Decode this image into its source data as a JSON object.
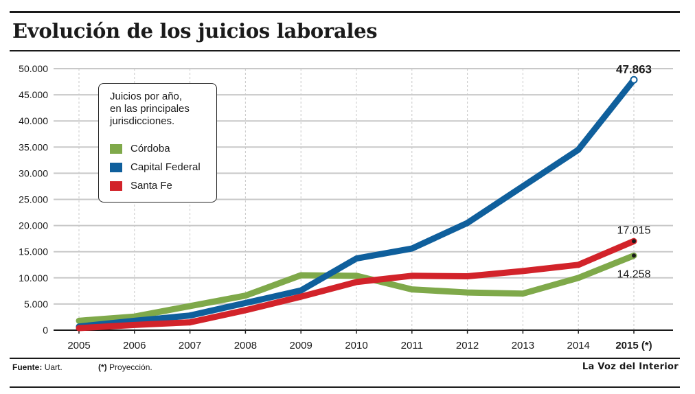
{
  "title": "Evolución de los juicios laborales",
  "legend": {
    "title_lines": [
      "Juicios por año,",
      "en las principales",
      "jurisdicciones."
    ]
  },
  "footer": {
    "source_label": "Fuente:",
    "source_value": "Uart.",
    "note_mark": "(*)",
    "note_text": "Proyección."
  },
  "brand": "La Voz del Interior",
  "colors": {
    "cordoba": "#7fa94a",
    "capital_federal": "#0f5f9c",
    "santa_fe": "#d2232a",
    "grid": "#c8c8c8",
    "axis": "#1a1a1a"
  },
  "chart_data": {
    "type": "line",
    "x": [
      "2005",
      "2006",
      "2007",
      "2008",
      "2009",
      "2010",
      "2011",
      "2012",
      "2013",
      "2014",
      "2015 (*)"
    ],
    "x_bold_last": true,
    "ylim": [
      0,
      50000
    ],
    "yticks": [
      0,
      5000,
      10000,
      15000,
      20000,
      25000,
      30000,
      35000,
      40000,
      45000,
      50000
    ],
    "ytick_labels": [
      "0",
      "5.000",
      "10.000",
      "15.000",
      "20.000",
      "25.000",
      "30.000",
      "35.000",
      "40.000",
      "45.000",
      "50.000"
    ],
    "grid": true,
    "legend_position": "top-left",
    "series": [
      {
        "name": "Córdoba",
        "color_key": "cordoba",
        "values": [
          1800,
          2600,
          4600,
          6600,
          10500,
          10400,
          7800,
          7200,
          7000,
          10000,
          14258
        ]
      },
      {
        "name": "Capital Federal",
        "color_key": "capital_federal",
        "values": [
          700,
          1800,
          2800,
          5200,
          7600,
          13700,
          15600,
          20500,
          27500,
          34500,
          47863
        ]
      },
      {
        "name": "Santa Fe",
        "color_key": "santa_fe",
        "values": [
          400,
          1000,
          1500,
          3800,
          6400,
          9200,
          10400,
          10300,
          11300,
          12500,
          17015
        ]
      }
    ],
    "annotations": [
      {
        "series": "Capital Federal",
        "label": "47.863",
        "bold": true
      },
      {
        "series": "Santa Fe",
        "label": "17.015",
        "bold": false
      },
      {
        "series": "Córdoba",
        "label": "14.258",
        "bold": false
      }
    ]
  }
}
